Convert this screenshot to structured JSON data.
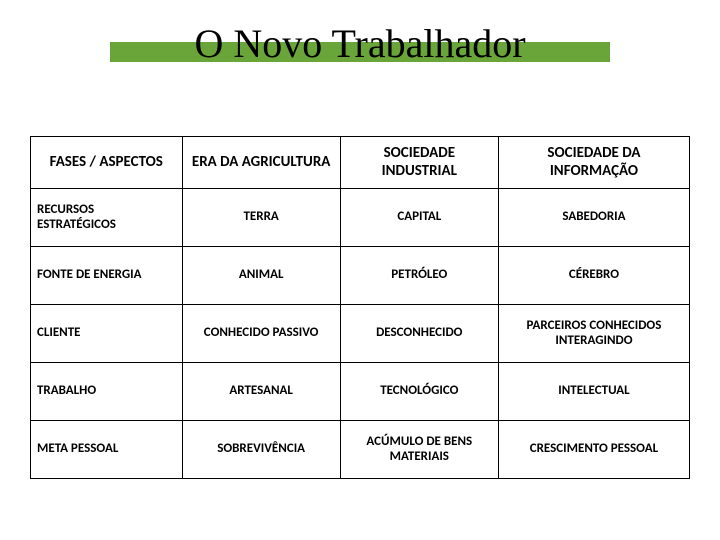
{
  "title": "O Novo Trabalhador",
  "colors": {
    "title_highlight": "#6aa53a",
    "border": "#000000",
    "text": "#000000",
    "background": "#ffffff"
  },
  "table": {
    "type": "table",
    "columns": [
      {
        "label": "FASES / ASPECTOS",
        "width_pct": 23,
        "align": "center"
      },
      {
        "label": "ERA DA AGRICULTURA",
        "width_pct": 24,
        "align": "center"
      },
      {
        "label": "SOCIEDADE INDUSTRIAL",
        "width_pct": 24,
        "align": "center"
      },
      {
        "label": "SOCIEDADE DA INFORMAÇÃO",
        "width_pct": 29,
        "align": "center"
      }
    ],
    "rows": [
      {
        "label": "RECURSOS ESTRATÉGICOS",
        "cells": [
          "TERRA",
          "CAPITAL",
          "SABEDORIA"
        ]
      },
      {
        "label": "FONTE DE ENERGIA",
        "cells": [
          "ANIMAL",
          "PETRÓLEO",
          "CÉREBRO"
        ]
      },
      {
        "label": "CLIENTE",
        "cells": [
          "CONHECIDO PASSIVO",
          "DESCONHECIDO",
          "PARCEIROS CONHECIDOS INTERAGINDO"
        ]
      },
      {
        "label": "TRABALHO",
        "cells": [
          "ARTESANAL",
          "TECNOLÓGICO",
          "INTELECTUAL"
        ]
      },
      {
        "label": "META PESSOAL",
        "cells": [
          "SOBREVIVÊNCIA",
          "ACÚMULO DE BENS MATERIAIS",
          "CRESCIMENTO PESSOAL"
        ]
      }
    ],
    "header_fontsize": 15,
    "cell_fontsize": 13,
    "font_weight": 700
  }
}
